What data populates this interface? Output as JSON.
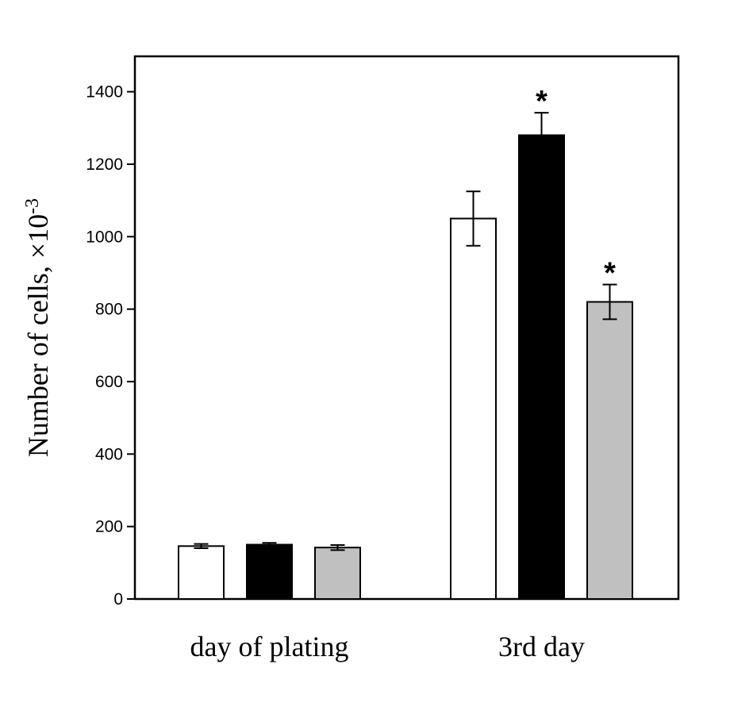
{
  "chart_data": {
    "type": "bar",
    "title": "",
    "xlabel": "",
    "ylabel": "Number of cells, ×10",
    "ylabel_exponent": "-3",
    "ylim": [
      0,
      1500
    ],
    "yticks": [
      0,
      200,
      400,
      600,
      800,
      1000,
      1200,
      1400
    ],
    "grid": false,
    "legend": "none",
    "categories": [
      "day of plating",
      "3rd day"
    ],
    "series": [
      {
        "color": "#ffffff",
        "values": [
          146,
          1050
        ],
        "errors": [
          6,
          75
        ],
        "significance": [
          "",
          ""
        ]
      },
      {
        "color": "#000000",
        "values": [
          150,
          1280
        ],
        "errors": [
          5,
          62
        ],
        "significance": [
          "",
          "*"
        ]
      },
      {
        "color": "#c0c0c0",
        "values": [
          142,
          820
        ],
        "errors": [
          7,
          48
        ],
        "significance": [
          "",
          "*"
        ]
      }
    ]
  }
}
